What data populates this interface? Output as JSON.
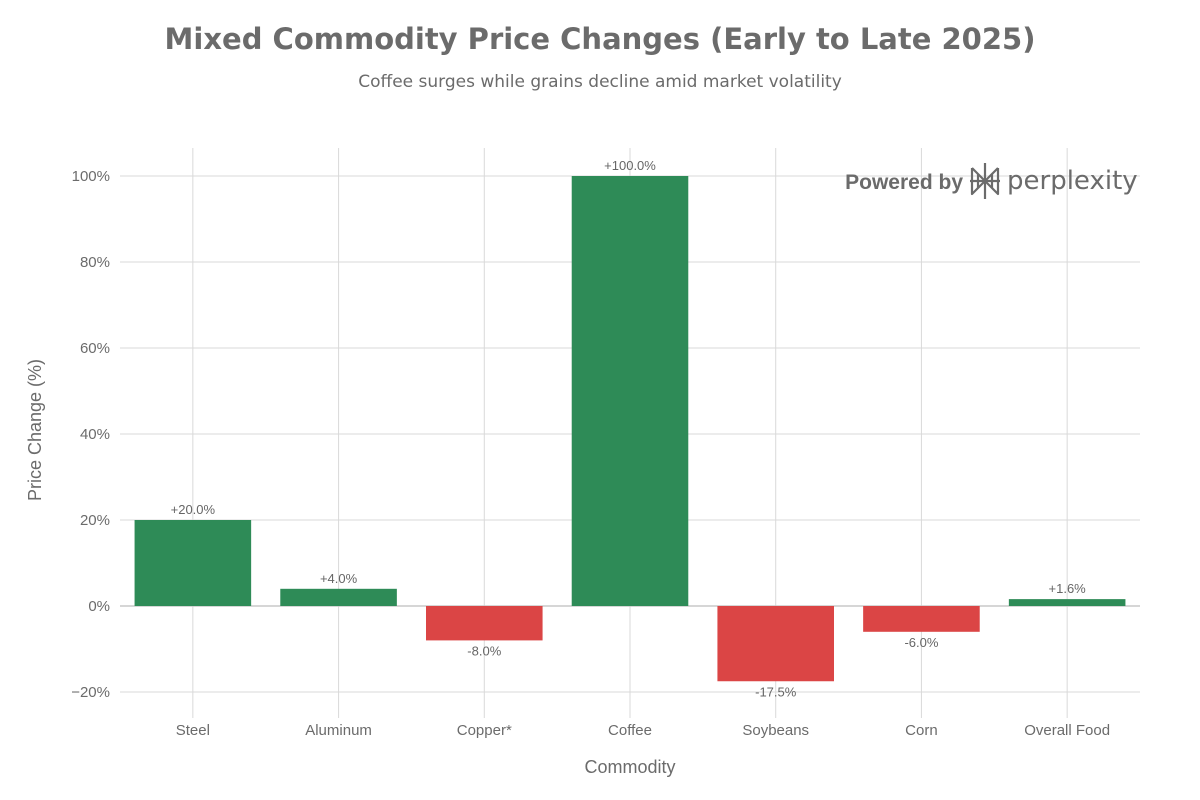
{
  "chart_data": {
    "type": "bar",
    "title": "Mixed Commodity Price Changes (Early to Late 2025)",
    "subtitle": "Coffee surges while grains decline amid market volatility",
    "xlabel": "Commodity",
    "ylabel": "Price Change (%)",
    "categories": [
      "Steel",
      "Aluminum",
      "Copper*",
      "Coffee",
      "Soybeans",
      "Corn",
      "Overall Food"
    ],
    "values": [
      20.0,
      4.0,
      -8.0,
      100.0,
      -17.5,
      -6.0,
      1.6
    ],
    "data_labels": [
      "+20.0%",
      "+4.0%",
      "-8.0%",
      "+100.0%",
      "-17.5%",
      "-6.0%",
      "+1.6%"
    ],
    "ylim": [
      -26.4,
      106.4
    ],
    "yticks": [
      -20,
      0,
      20,
      40,
      60,
      80,
      100
    ],
    "ytick_labels": [
      "−20%",
      "0%",
      "20%",
      "40%",
      "60%",
      "80%",
      "100%"
    ],
    "grid": true,
    "colors": {
      "positive": "#2e8b57",
      "negative": "#db4545",
      "grid": "#d9d9d9",
      "zero_line": "#c8c8c8"
    }
  },
  "watermark": {
    "prefix": "Powered by",
    "brand": "perplexity",
    "icon": "perplexity-logo-icon"
  }
}
